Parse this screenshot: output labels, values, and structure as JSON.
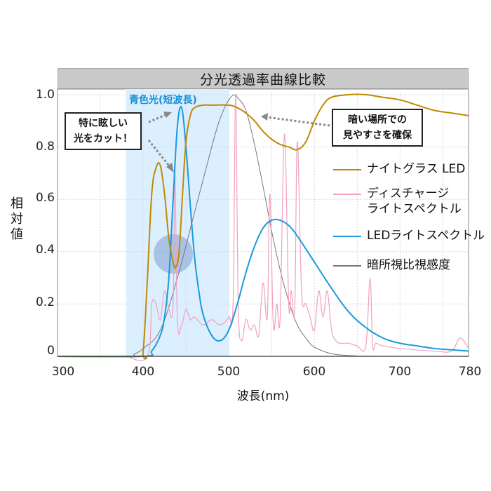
{
  "chart": {
    "title": "分光透過率曲線比較",
    "ylabel": "相対値",
    "xlabel": "波長(nm)",
    "yticks": [
      "1.0",
      "0.8",
      "0.6",
      "0.4",
      "0.2",
      "0"
    ],
    "xticks": [
      "300",
      "400",
      "500",
      "600",
      "700",
      "780"
    ],
    "band_label": "青色光(短波長)",
    "callout_left": [
      "特に眩しい",
      "光をカット！"
    ],
    "callout_right": [
      "暗い場所での",
      "見やすさを確保"
    ],
    "legend": [
      {
        "label": "ナイトグラス LED",
        "color": "#c08a00"
      },
      {
        "label": "ディスチャージ\nライトスペクトル",
        "label_line1": "ディスチャージ",
        "label_line2": "ライトスペクトル",
        "color": "#f0a0c0"
      },
      {
        "label": "LEDライトスペクトル",
        "color": "#1a9ae0"
      },
      {
        "label": "暗所視比視感度",
        "color": "#777777"
      }
    ]
  },
  "chart_data": {
    "type": "line",
    "title": "分光透過率曲線比較",
    "xlabel": "波長(nm)",
    "ylabel": "相対値",
    "xlim": [
      300,
      780
    ],
    "ylim": [
      0,
      1.0
    ],
    "xticks": [
      300,
      400,
      500,
      600,
      700,
      780
    ],
    "yticks": [
      0,
      0.2,
      0.4,
      0.6,
      0.8,
      1.0
    ],
    "grid": true,
    "legend_position": "right-inside",
    "shaded_region": {
      "x_start": 380,
      "x_end": 500,
      "label": "青色光(短波長)",
      "color": "#dcefff"
    },
    "annotations": [
      {
        "text": "特に眩しい光をカット！",
        "target_nm": 437,
        "target_value": 0.38
      },
      {
        "text": "暗い場所での見やすさを確保",
        "target_nm": 580,
        "target_value": 0.82
      }
    ],
    "series": [
      {
        "name": "ナイトグラス LED",
        "color": "#c08a00",
        "x": [
          300,
          395,
          400,
          405,
          410,
          415,
          420,
          425,
          430,
          435,
          438,
          442,
          446,
          450,
          455,
          460,
          470,
          480,
          500,
          510,
          520,
          530,
          540,
          550,
          560,
          570,
          580,
          590,
          600,
          610,
          620,
          640,
          660,
          680,
          700,
          720,
          740,
          760,
          780
        ],
        "y": [
          0,
          0,
          0.02,
          0.3,
          0.62,
          0.72,
          0.73,
          0.62,
          0.45,
          0.36,
          0.34,
          0.4,
          0.62,
          0.82,
          0.92,
          0.95,
          0.96,
          0.96,
          0.96,
          0.95,
          0.93,
          0.9,
          0.86,
          0.83,
          0.81,
          0.8,
          0.79,
          0.82,
          0.9,
          0.96,
          0.99,
          1.0,
          1.0,
          0.99,
          0.98,
          0.96,
          0.94,
          0.93,
          0.92
        ]
      },
      {
        "name": "ディスチャージライトスペクトル",
        "color": "#f0a0c0",
        "x": [
          380,
          405,
          410,
          415,
          420,
          425,
          430,
          435,
          437,
          440,
          445,
          450,
          455,
          460,
          470,
          480,
          490,
          500,
          505,
          508,
          511,
          515,
          520,
          525,
          530,
          535,
          540,
          545,
          548,
          552,
          556,
          560,
          565,
          570,
          573,
          577,
          580,
          585,
          590,
          595,
          600,
          605,
          610,
          615,
          620,
          625,
          630,
          640,
          650,
          660,
          665,
          668,
          672,
          680,
          700,
          740,
          760,
          770,
          780
        ],
        "y": [
          0,
          0,
          0.2,
          0.2,
          0.14,
          0.25,
          0.18,
          0.2,
          0.72,
          0.14,
          0.12,
          0.18,
          0.14,
          0.15,
          0.12,
          0.14,
          0.12,
          0.15,
          0.2,
          1.0,
          0.2,
          0.06,
          0.14,
          0.1,
          0.12,
          0.08,
          0.28,
          0.15,
          0.62,
          0.12,
          0.2,
          0.15,
          0.85,
          0.2,
          0.25,
          0.18,
          0.82,
          0.25,
          0.2,
          0.15,
          0.1,
          0.25,
          0.15,
          0.25,
          0.1,
          0.06,
          0.05,
          0.05,
          0.04,
          0.04,
          0.3,
          0.04,
          0.05,
          0.04,
          0.03,
          0.02,
          0.02,
          0.07,
          0.03
        ]
      },
      {
        "name": "LEDライトスペクトル",
        "color": "#1a9ae0",
        "x": [
          300,
          400,
          410,
          420,
          425,
          430,
          435,
          440,
          445,
          450,
          455,
          460,
          465,
          470,
          480,
          490,
          500,
          510,
          520,
          530,
          540,
          550,
          560,
          570,
          580,
          600,
          620,
          640,
          660,
          680,
          700,
          720,
          740,
          760,
          780
        ],
        "y": [
          0,
          0,
          0.02,
          0.08,
          0.15,
          0.3,
          0.6,
          0.88,
          0.95,
          0.8,
          0.58,
          0.38,
          0.25,
          0.16,
          0.08,
          0.06,
          0.1,
          0.2,
          0.32,
          0.42,
          0.49,
          0.52,
          0.52,
          0.5,
          0.46,
          0.36,
          0.26,
          0.17,
          0.11,
          0.07,
          0.05,
          0.04,
          0.03,
          0.025,
          0.02
        ]
      },
      {
        "name": "暗所視比視感度",
        "color": "#777777",
        "x": [
          300,
          380,
          390,
          400,
          420,
          440,
          460,
          480,
          490,
          500,
          507,
          510,
          520,
          530,
          540,
          550,
          560,
          570,
          580,
          590,
          600,
          620,
          640,
          660,
          700,
          780
        ],
        "y": [
          0,
          0,
          0.01,
          0.03,
          0.1,
          0.3,
          0.55,
          0.8,
          0.91,
          0.98,
          1.0,
          0.99,
          0.94,
          0.81,
          0.65,
          0.48,
          0.33,
          0.21,
          0.12,
          0.07,
          0.035,
          0.01,
          0.003,
          0.001,
          0,
          0
        ]
      }
    ]
  }
}
